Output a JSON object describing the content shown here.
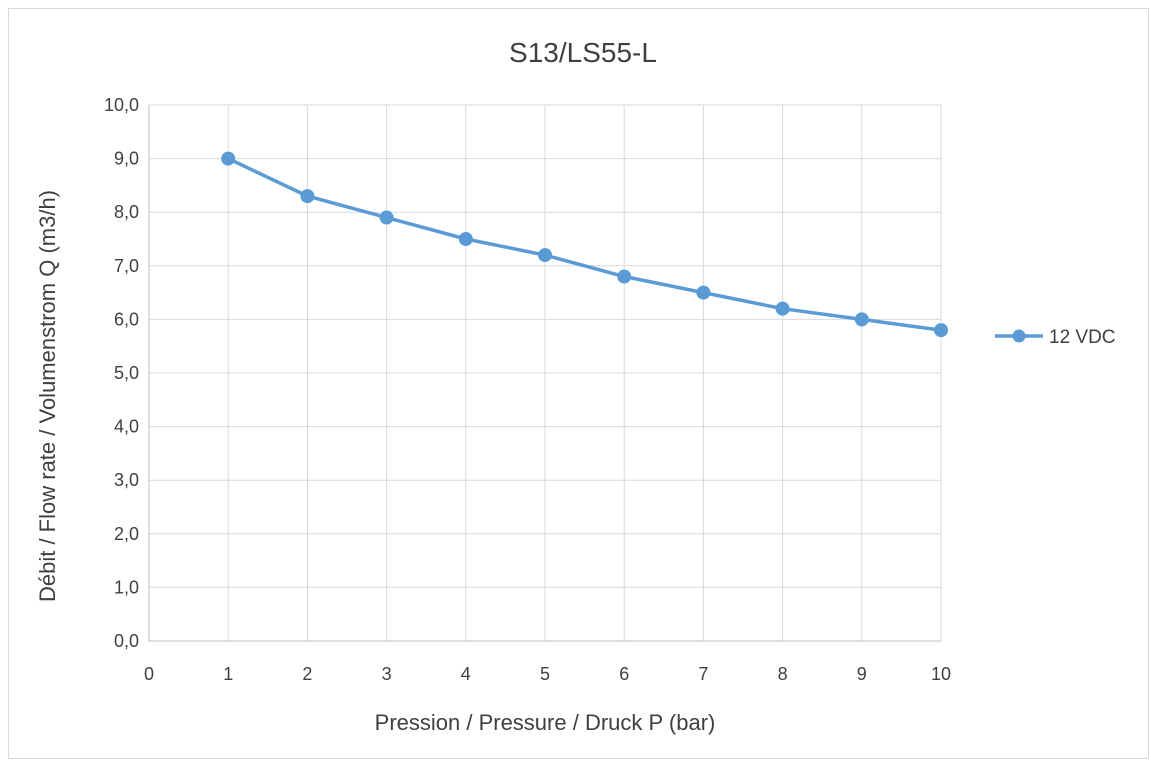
{
  "chart_data": {
    "type": "line",
    "title": "S13/LS55-L",
    "xlabel": "Pression / Pressure / Druck P (bar)",
    "ylabel": "Débit / Flow rate / Volumenstrom Q (m3/h)",
    "xlim": [
      0,
      10
    ],
    "ylim": [
      0,
      10
    ],
    "x_ticks": [
      "0",
      "1",
      "2",
      "3",
      "4",
      "5",
      "6",
      "7",
      "8",
      "9",
      "10"
    ],
    "y_ticks": [
      "0,0",
      "1,0",
      "2,0",
      "3,0",
      "4,0",
      "5,0",
      "6,0",
      "7,0",
      "8,0",
      "9,0",
      "10,0"
    ],
    "grid": true,
    "legend_position": "right",
    "series": [
      {
        "name": "12 VDC",
        "color": "#5b9bd5",
        "x": [
          1,
          2,
          3,
          4,
          5,
          6,
          7,
          8,
          9,
          10
        ],
        "y": [
          9.0,
          8.3,
          7.9,
          7.5,
          7.2,
          6.8,
          6.5,
          6.2,
          6.0,
          5.8
        ]
      }
    ]
  }
}
